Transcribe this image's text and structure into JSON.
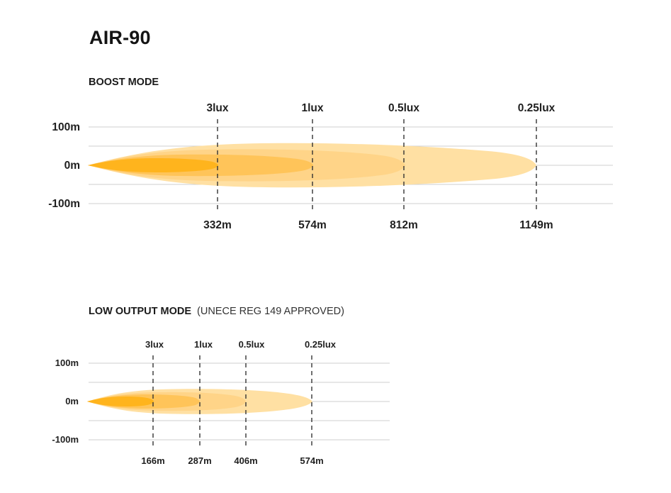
{
  "title": "AIR-90",
  "colors": {
    "beam_outer": "#ffe0a3",
    "beam_mid2": "#ffd488",
    "beam_mid1": "#ffc459",
    "beam_core": "#ffb41d",
    "grid": "#cfcfcf",
    "marker": "#333333",
    "text": "#1a1a1a"
  },
  "boost": {
    "heading": "BOOST MODE",
    "note": "",
    "y_labels": [
      "100m",
      "0m",
      "-100m"
    ],
    "markers": [
      {
        "lux": "3lux",
        "distance": "332m",
        "distance_m": 332
      },
      {
        "lux": "1lux",
        "distance": "574m",
        "distance_m": 574
      },
      {
        "lux": "0.5lux",
        "distance": "812m",
        "distance_m": 812
      },
      {
        "lux": "0.25lux",
        "distance": "1149m",
        "distance_m": 1149
      }
    ]
  },
  "low": {
    "heading": "LOW OUTPUT MODE",
    "note": "(UNECE REG 149 APPROVED)",
    "y_labels": [
      "100m",
      "0m",
      "-100m"
    ],
    "markers": [
      {
        "lux": "3lux",
        "distance": "166m",
        "distance_m": 166
      },
      {
        "lux": "1lux",
        "distance": "287m",
        "distance_m": 287
      },
      {
        "lux": "0.5lux",
        "distance": "406m",
        "distance_m": 406
      },
      {
        "lux": "0.25lux",
        "distance": "574m",
        "distance_m": 574
      }
    ]
  }
}
